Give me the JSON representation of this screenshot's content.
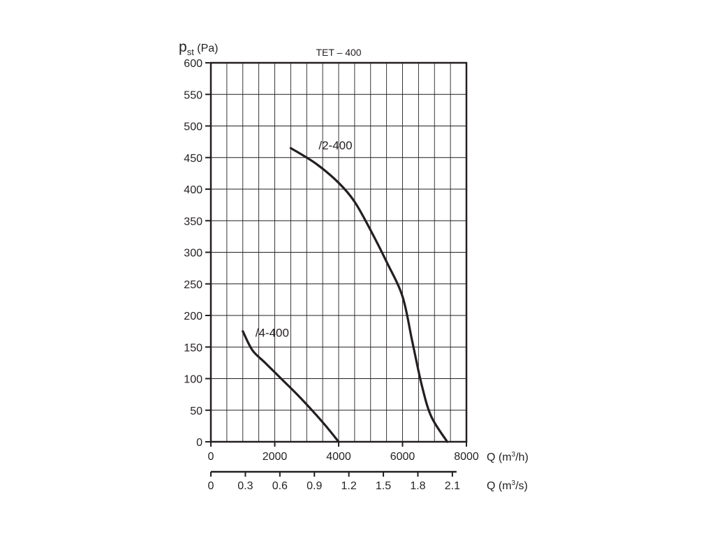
{
  "chart_data": {
    "type": "line",
    "title": "TET – 400",
    "ylabel": {
      "symbol": "p",
      "subscript": "st",
      "unit": " (Pa)"
    },
    "xlabel": {
      "text": "Q (m",
      "sup": "3",
      "end": "/h)"
    },
    "x2label": {
      "text": "Q (m",
      "sup": "3",
      "end": "/s)"
    },
    "xlim": [
      0,
      8000
    ],
    "ylim": [
      0,
      600
    ],
    "yticks": [
      "0",
      "50",
      "100",
      "150",
      "200",
      "250",
      "300",
      "350",
      "400",
      "450",
      "500",
      "550",
      "600"
    ],
    "xticks": [
      "0",
      "2000",
      "4000",
      "6000",
      "8000"
    ],
    "x2ticks": [
      "0",
      "0.3",
      "0.6",
      "0.9",
      "1.2",
      "1.5",
      "1.8",
      "2.1"
    ],
    "x2_values": [
      0,
      0.3,
      0.6,
      0.9,
      1.2,
      1.5,
      1.8,
      2.1
    ],
    "grid": true,
    "series": [
      {
        "name": "/2-400",
        "color": "#231f20",
        "points": [
          [
            2500,
            465
          ],
          [
            3300,
            440
          ],
          [
            4000,
            410
          ],
          [
            4500,
            380
          ],
          [
            5000,
            335
          ],
          [
            5500,
            285
          ],
          [
            6000,
            230
          ],
          [
            6300,
            160
          ],
          [
            6600,
            90
          ],
          [
            6900,
            40
          ],
          [
            7400,
            0
          ]
        ]
      },
      {
        "name": "/4-400",
        "color": "#231f20",
        "points": [
          [
            1000,
            175
          ],
          [
            1300,
            145
          ],
          [
            1700,
            125
          ],
          [
            2200,
            100
          ],
          [
            2700,
            75
          ],
          [
            3200,
            48
          ],
          [
            3600,
            25
          ],
          [
            4000,
            0
          ]
        ]
      }
    ]
  }
}
